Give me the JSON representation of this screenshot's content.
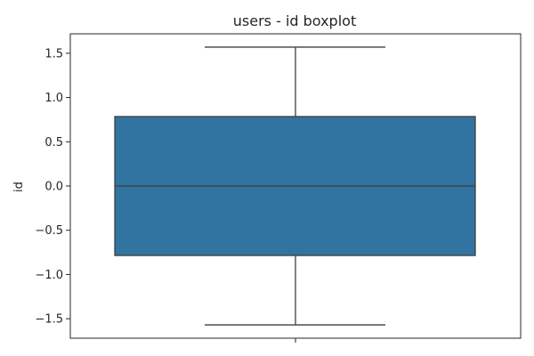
{
  "chart_data": {
    "type": "boxplot",
    "title": "users - id boxplot",
    "xlabel": "",
    "ylabel": "id",
    "ylim": [
      -1.72,
      1.72
    ],
    "yticks": [
      1.5,
      1.0,
      0.5,
      0.0,
      -0.5,
      -1.0,
      -1.5
    ],
    "ytick_labels": [
      "1.5",
      "1.0",
      "0.5",
      "0.0",
      "−0.5",
      "−1.0",
      "−1.5"
    ],
    "box": {
      "whisker_low": -1.57,
      "q1": -0.785,
      "median": 0.0,
      "q3": 0.785,
      "whisker_high": 1.57
    },
    "grid": false,
    "colors": {
      "box_fill": "#3274a1",
      "line": "#3f3f3f",
      "axis": "#262626"
    }
  }
}
